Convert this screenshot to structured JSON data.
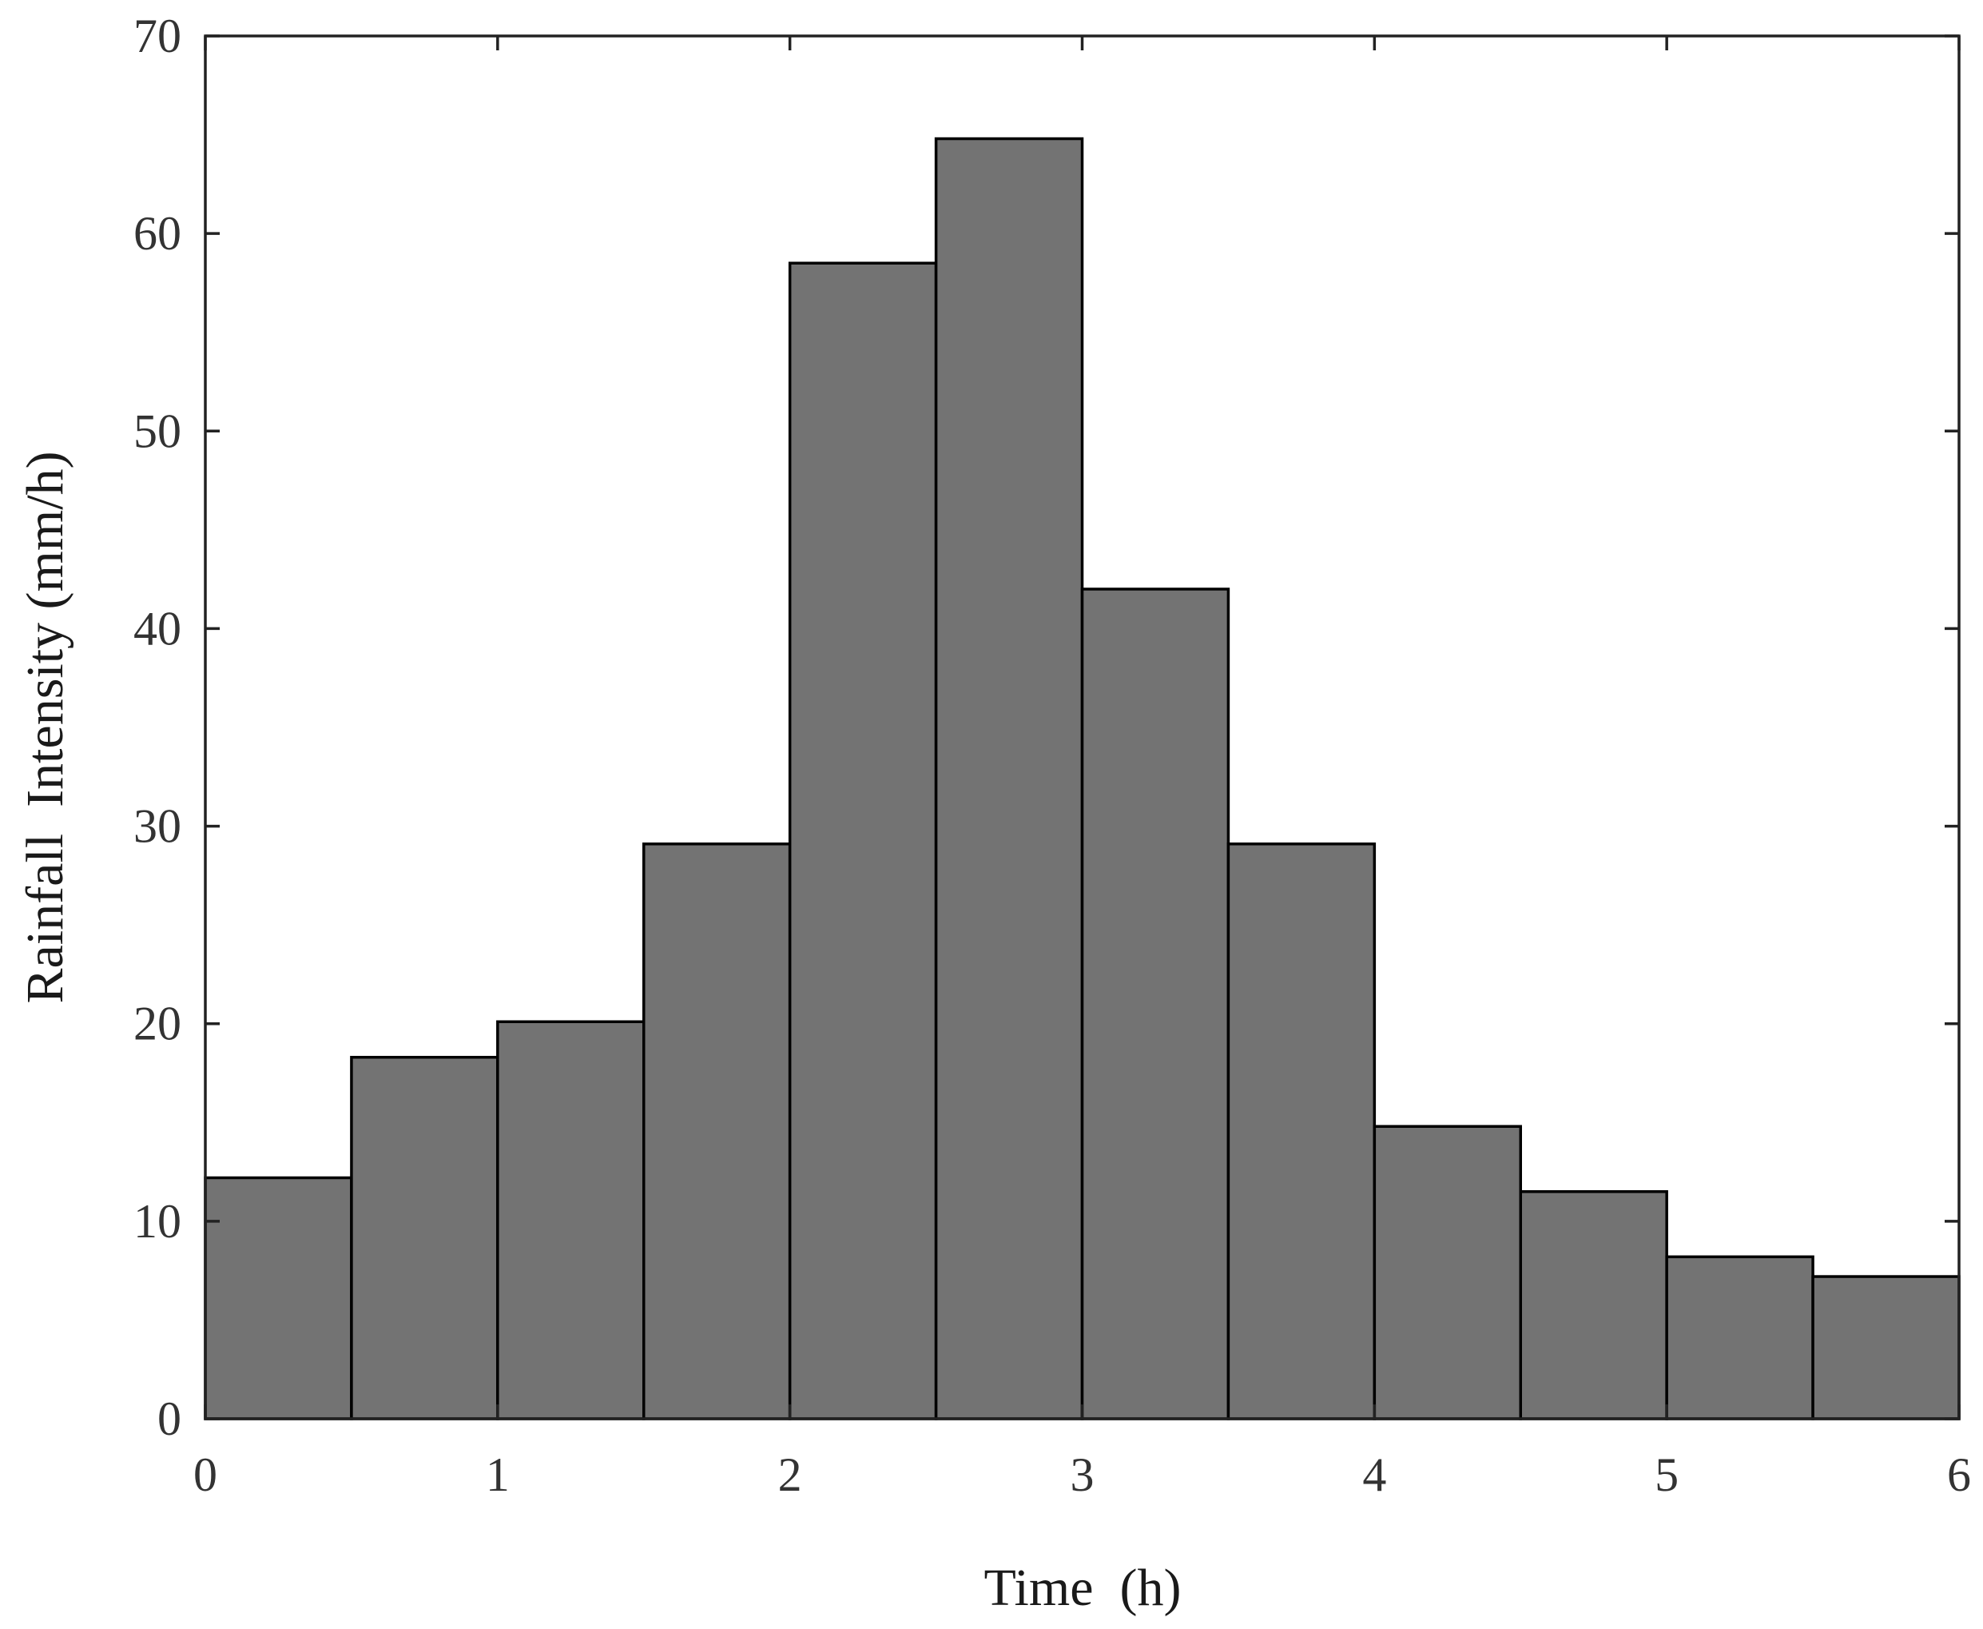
{
  "chart_data": {
    "type": "bar",
    "bin_edges": [
      0,
      0.5,
      1,
      1.5,
      2,
      2.5,
      3,
      3.5,
      4,
      4.5,
      5,
      5.5,
      6
    ],
    "values": [
      12.2,
      18.3,
      20.1,
      29.1,
      58.5,
      64.8,
      42.0,
      29.1,
      14.8,
      11.5,
      8.2,
      7.2
    ],
    "title": "",
    "xlabel": "Time  (h)",
    "ylabel": "Rainfall  Intensity (mm/h)",
    "xlim": [
      0,
      6
    ],
    "ylim": [
      0,
      70
    ],
    "xticks": [
      0,
      1,
      2,
      3,
      4,
      5,
      6
    ],
    "yticks": [
      0,
      10,
      20,
      30,
      40,
      50,
      60,
      70
    ],
    "grid": false,
    "legend": "none",
    "colors": {
      "bar_fill": "#737373",
      "bar_edge": "#000000",
      "axis": "#222222",
      "text": "#333333"
    }
  }
}
